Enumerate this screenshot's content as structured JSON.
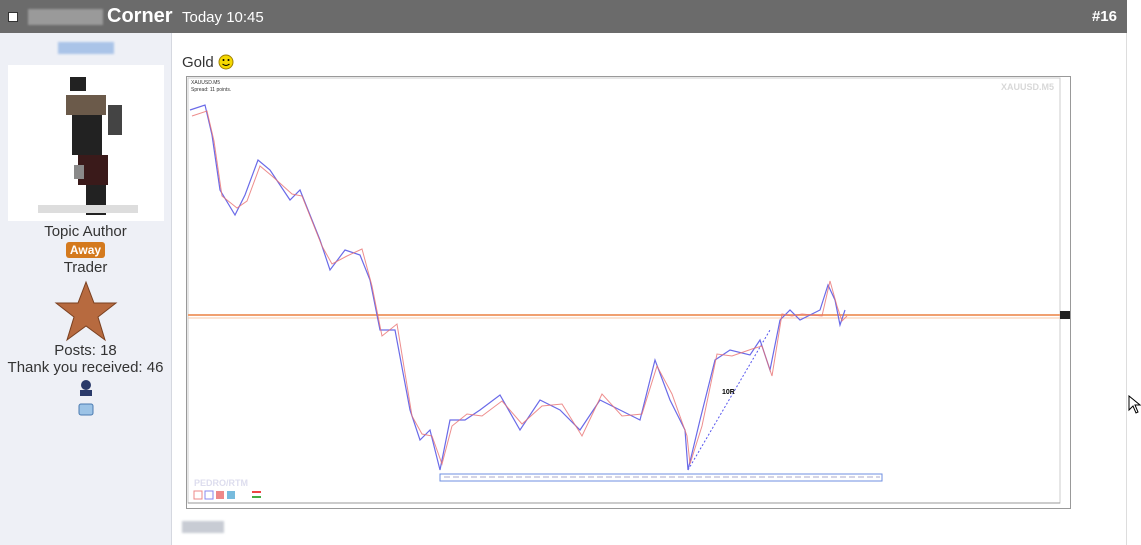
{
  "header": {
    "title": "Corner",
    "time": "Today 10:45",
    "post_number": "#16"
  },
  "author": {
    "role": "Topic Author",
    "status": "Away",
    "rank": "Trader",
    "posts": "Posts: 18",
    "thanks": "Thank you received: 46"
  },
  "post": {
    "text": "Gold",
    "chart_image": {
      "symbol": "XAUUSD.M5",
      "spread": "Spread: 11 points.",
      "annotation": "10R",
      "watermark": "PEDRO/RTM"
    }
  }
}
